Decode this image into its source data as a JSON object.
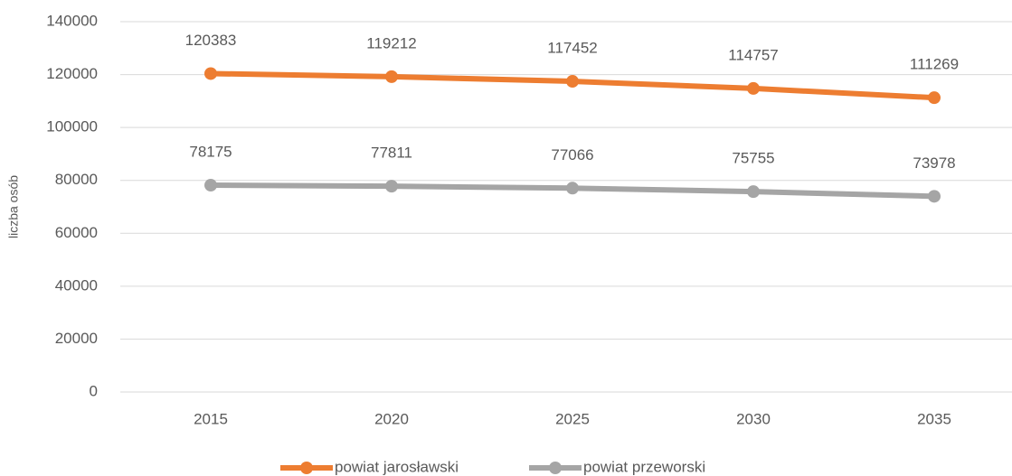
{
  "chart_data": {
    "type": "line",
    "y_label": "liczba osób",
    "categories": [
      "2015",
      "2020",
      "2025",
      "2030",
      "2035"
    ],
    "series": [
      {
        "name": "powiat jarosławski",
        "color": "#ED7D31",
        "values": [
          120383,
          119212,
          117452,
          114757,
          111269
        ]
      },
      {
        "name": "powiat przeworski",
        "color": "#A5A5A5",
        "values": [
          78175,
          77811,
          77066,
          75755,
          73978
        ]
      }
    ],
    "ylim": [
      0,
      140000
    ],
    "yticks": [
      0,
      20000,
      40000,
      60000,
      80000,
      100000,
      120000,
      140000
    ],
    "grid": true,
    "legend": "bottom"
  }
}
